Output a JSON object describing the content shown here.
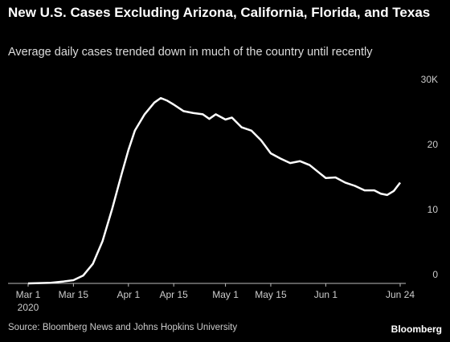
{
  "chart_data": {
    "type": "line",
    "title": "New U.S. Cases Excluding Arizona, California, Florida, and Texas",
    "subtitle": "Average daily cases trended down in much of the country until recently",
    "source": "Source: Bloomberg News and Johns Hopkins University",
    "brand": "Bloomberg",
    "x": [
      "2020-03-01",
      "2020-03-08",
      "2020-03-12",
      "2020-03-15",
      "2020-03-18",
      "2020-03-21",
      "2020-03-24",
      "2020-03-27",
      "2020-03-30",
      "2020-04-01",
      "2020-04-03",
      "2020-04-06",
      "2020-04-09",
      "2020-04-11",
      "2020-04-13",
      "2020-04-15",
      "2020-04-18",
      "2020-04-21",
      "2020-04-24",
      "2020-04-26",
      "2020-04-28",
      "2020-05-01",
      "2020-05-03",
      "2020-05-06",
      "2020-05-09",
      "2020-05-12",
      "2020-05-15",
      "2020-05-18",
      "2020-05-21",
      "2020-05-24",
      "2020-05-27",
      "2020-05-30",
      "2020-06-01",
      "2020-06-04",
      "2020-06-07",
      "2020-06-10",
      "2020-06-13",
      "2020-06-16",
      "2020-06-18",
      "2020-06-20",
      "2020-06-22",
      "2020-06-24"
    ],
    "series": [
      {
        "color": "#ffffff",
        "values": [
          0,
          0.1,
          0.3,
          0.5,
          1.2,
          3,
          6.5,
          11.5,
          17,
          20.5,
          23.5,
          26,
          27.8,
          28.5,
          28.1,
          27.5,
          26.5,
          26.2,
          26,
          25.3,
          26,
          25.2,
          25.5,
          24,
          23.5,
          22,
          20,
          19.2,
          18.5,
          18.8,
          18.2,
          17,
          16.2,
          16.3,
          15.5,
          15,
          14.3,
          14.3,
          13.8,
          13.6,
          14.2,
          15.5
        ]
      }
    ],
    "xlim": [
      "2020-03-01",
      "2020-06-24"
    ],
    "xticks": [
      {
        "value": "2020-03-01",
        "label": "Mar 1"
      },
      {
        "value": "2020-03-15",
        "label": "Mar 15"
      },
      {
        "value": "2020-04-01",
        "label": "Apr 1"
      },
      {
        "value": "2020-04-15",
        "label": "Apr 15"
      },
      {
        "value": "2020-05-01",
        "label": "May 1"
      },
      {
        "value": "2020-05-15",
        "label": "May 15"
      },
      {
        "value": "2020-06-01",
        "label": "Jun 1"
      },
      {
        "value": "2020-06-24",
        "label": "Jun 24"
      }
    ],
    "x_year_label": "2020",
    "ylim": [
      0,
      30
    ],
    "yticks": [
      0,
      10,
      20,
      {
        "value": 30,
        "label": "30K"
      }
    ],
    "grid": false
  }
}
